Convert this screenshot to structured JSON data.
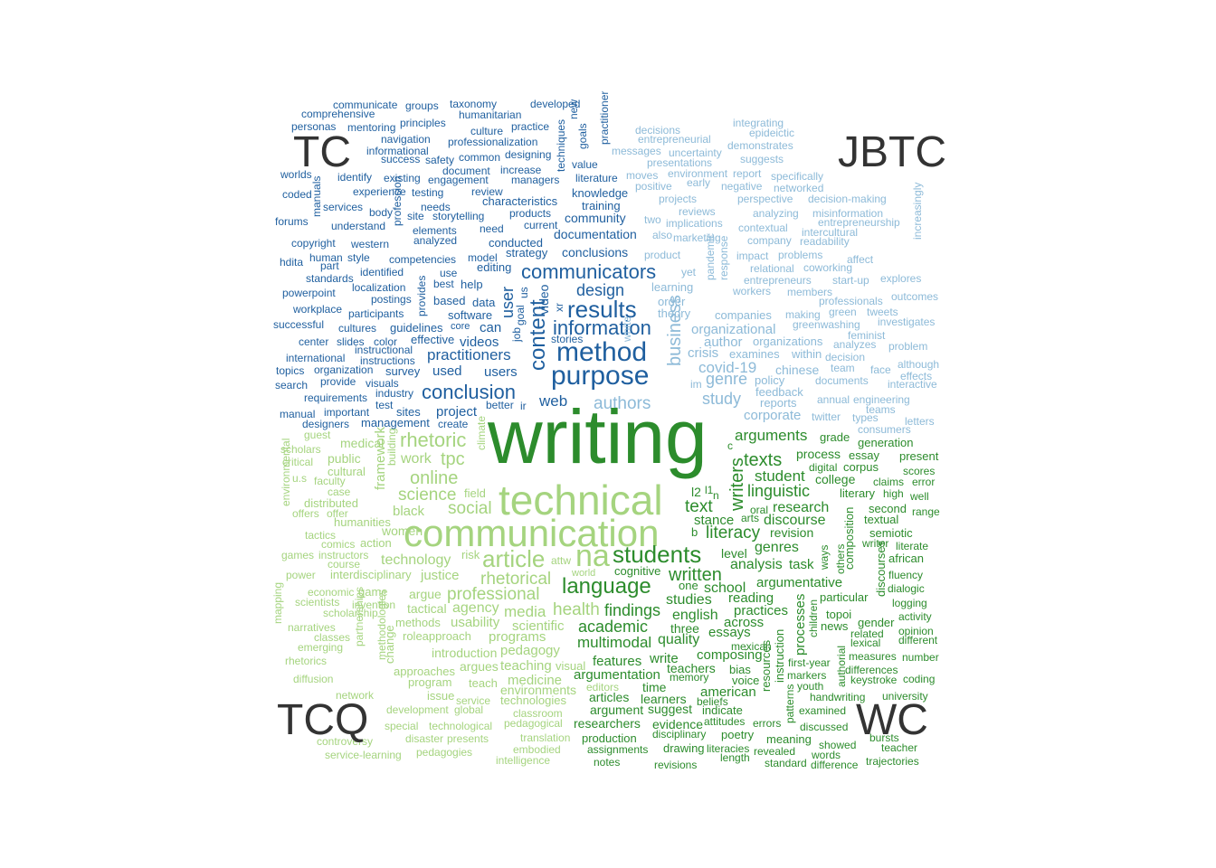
{
  "chart_data": {
    "type": "wordcloud",
    "corner_labels": {
      "top_left": "TC",
      "top_right": "JBTC",
      "bottom_left": "TCQ",
      "bottom_right": "WC"
    },
    "colors": {
      "TC": "#1f5f9f",
      "JBTC": "#8dbad8",
      "TCQ": "#a5d47f",
      "WC": "#2c8c2c",
      "labels": "#333333"
    },
    "words": {
      "TC": [
        "communicate",
        "groups",
        "taxonomy",
        "developed",
        "comprehensive",
        "humanitarian",
        "personas",
        "mentoring",
        "principles",
        "culture",
        "practice",
        "navigation",
        "professionalization",
        "informational",
        "common",
        "designing",
        "success",
        "safety",
        "worlds",
        "identify",
        "existing",
        "document",
        "increase",
        "engagement",
        "managers",
        "literature",
        "value",
        "coded",
        "experience",
        "testing",
        "review",
        "characteristics",
        "knowledge",
        "services",
        "body",
        "needs",
        "training",
        "forums",
        "understand",
        "site",
        "storytelling",
        "products",
        "current",
        "community",
        "elements",
        "need",
        "copyright",
        "western",
        "analyzed",
        "conducted",
        "documentation",
        "hdita",
        "human",
        "style",
        "competencies",
        "model",
        "strategy",
        "conclusions",
        "part",
        "identified",
        "use",
        "editing",
        "standards",
        "best",
        "help",
        "communicators",
        "powerpoint",
        "localization",
        "design",
        "postings",
        "based",
        "data",
        "workplace",
        "participants",
        "software",
        "results",
        "successful",
        "cultures",
        "guidelines",
        "core",
        "can",
        "information",
        "center",
        "slides",
        "color",
        "effective",
        "videos",
        "stories",
        "instructional",
        "method",
        "international",
        "instructions",
        "practitioners",
        "topics",
        "organization",
        "survey",
        "used",
        "users",
        "purpose",
        "search",
        "provide",
        "visuals",
        "industry",
        "conclusion",
        "requirements",
        "test",
        "web",
        "manual",
        "important",
        "sites",
        "project",
        "designers",
        "management",
        "create",
        "better",
        "ir",
        "user",
        "content",
        "video",
        "job",
        "goal",
        "us",
        "xr",
        "provides",
        "profession",
        "manuals",
        "techniques",
        "goals",
        "practitioner",
        "new"
      ],
      "JBTC": [
        "decisions",
        "integrating",
        "entrepreneurial",
        "epideictic",
        "messages",
        "uncertainty",
        "demonstrates",
        "presentations",
        "suggests",
        "moves",
        "environment",
        "report",
        "positive",
        "early",
        "negative",
        "specifically",
        "networked",
        "projects",
        "perspective",
        "decision-making",
        "reviews",
        "analyzing",
        "misinformation",
        "two",
        "implications",
        "entrepreneurship",
        "also",
        "marketing",
        "contextual",
        "intercultural",
        "company",
        "readability",
        "product",
        "impact",
        "problems",
        "affect",
        "relational",
        "coworking",
        "yet",
        "entrepreneurs",
        "start-up",
        "learning",
        "workers",
        "members",
        "professionals",
        "explores",
        "order",
        "outcomes",
        "theory",
        "companies",
        "green",
        "tweets",
        "making",
        "greenwashing",
        "investigates",
        "organizational",
        "feminist",
        "author",
        "organizations",
        "analyzes",
        "problem",
        "crisis",
        "examines",
        "within",
        "decision",
        "covid-19",
        "chinese",
        "team",
        "face",
        "although",
        "im",
        "genre",
        "policy",
        "documents",
        "effects",
        "interactive",
        "feedback",
        "study",
        "reports",
        "annual",
        "engineering",
        "authors",
        "teams",
        "corporate",
        "twitter",
        "types",
        "letters",
        "consumers",
        "business",
        "white",
        "pandemic",
        "response",
        "increasingly"
      ],
      "TCQ": [
        "guest",
        "medical",
        "scholars",
        "public",
        "critical",
        "cultural",
        "u.s",
        "faculty",
        "case",
        "distributed",
        "offers",
        "offer",
        "humanities",
        "tactics",
        "comics",
        "action",
        "games",
        "instructors",
        "course",
        "power",
        "interdisciplinary",
        "economic",
        "game",
        "scientists",
        "invention",
        "scholarship",
        "narratives",
        "classes",
        "emerging",
        "rhetorics",
        "diffusion",
        "network",
        "development",
        "global",
        "special",
        "technological",
        "controversy",
        "service-learning",
        "pedagogies",
        "rhetoric",
        "work",
        "tpc",
        "online",
        "science",
        "social",
        "black",
        "women",
        "technology",
        "justice",
        "rhetorical",
        "professional",
        "argue",
        "tactical",
        "agency",
        "usability",
        "methods",
        "roleapproach",
        "programs",
        "introduction",
        "argues",
        "teaching",
        "approaches",
        "program",
        "teach",
        "issue",
        "service",
        "presents",
        "disaster",
        "translation",
        "embodied",
        "intelligence",
        "editors",
        "pedagogical",
        "classroom",
        "technologies",
        "environments",
        "medicine",
        "visual",
        "pedagogy",
        "scientific",
        "media",
        "health",
        "article",
        "communication",
        "technical",
        "field",
        "risk",
        "attw",
        "world",
        "na",
        "framework",
        "building",
        "climate",
        "environmental",
        "methodologies",
        "partnerships",
        "mapping",
        "change"
      ],
      "WC": [
        "writing",
        "arguments",
        "grade",
        "generation",
        "texts",
        "process",
        "essay",
        "present",
        "student",
        "corpus",
        "scores",
        "digital",
        "college",
        "claims",
        "error",
        "linguistic",
        "literary",
        "high",
        "well",
        "text",
        "research",
        "second",
        "range",
        "oral",
        "arts",
        "discourse",
        "textual",
        "literacy",
        "revision",
        "semiotic",
        "stance",
        "writer",
        "literate",
        "genres",
        "level",
        "analysis",
        "task",
        "african",
        "written",
        "cognitive",
        "argumentative",
        "fluency",
        "language",
        "school",
        "particular",
        "dialogic",
        "one",
        "reading",
        "logging",
        "students",
        "studies",
        "topoi",
        "gender",
        "activity",
        "findings",
        "english",
        "practices",
        "related",
        "opinion",
        "across",
        "news",
        "lexical",
        "different",
        "academic",
        "three",
        "essays",
        "quality",
        "mexican",
        "multimodal",
        "composing",
        "measures",
        "number",
        "features",
        "write",
        "teachers",
        "differences",
        "instruction",
        "argumentation",
        "memory",
        "bias",
        "voice",
        "markers",
        "keystroke",
        "coding",
        "youth",
        "first-year",
        "articles",
        "learners",
        "time",
        "american",
        "beliefs",
        "handwriting",
        "university",
        "argument",
        "suggest",
        "indicate",
        "examined",
        "evidence",
        "attitudes",
        "errors",
        "poetry",
        "discussed",
        "researchers",
        "disciplinary",
        "meaning",
        "showed",
        "production",
        "drawing",
        "literacies",
        "revealed",
        "bursts",
        "teacher",
        "assignments",
        "length",
        "words",
        "notes",
        "revisions",
        "standard",
        "difference",
        "trajectories",
        "writers",
        "composition",
        "others",
        "ways",
        "processes",
        "children",
        "authorial",
        "resources",
        "patterns",
        "discourses",
        "l2",
        "l1",
        "n",
        "c",
        "b"
      ]
    }
  }
}
